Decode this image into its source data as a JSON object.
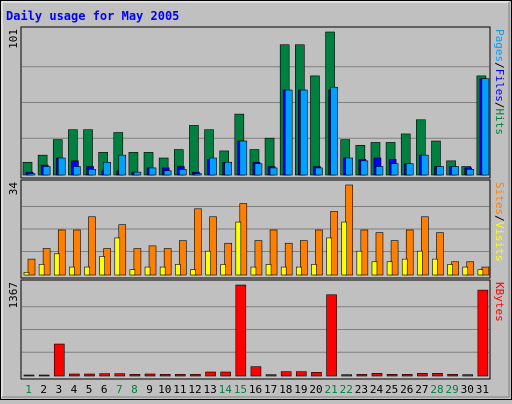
{
  "chart_data": {
    "type": "bar",
    "title": "Daily usage for May 2005",
    "categories": [
      "1",
      "2",
      "3",
      "4",
      "5",
      "6",
      "7",
      "8",
      "9",
      "10",
      "11",
      "12",
      "13",
      "14",
      "15",
      "16",
      "17",
      "18",
      "19",
      "20",
      "21",
      "22",
      "23",
      "24",
      "25",
      "26",
      "27",
      "28",
      "29",
      "30",
      "31"
    ],
    "weekend_days": [
      "1",
      "7",
      "8",
      "14",
      "15",
      "21",
      "22",
      "28",
      "29"
    ],
    "panels": [
      {
        "id": "hits",
        "max_label": "101",
        "ymax": 101,
        "side_label": [
          "Pages",
          "/",
          "Files",
          "/",
          "Hits"
        ],
        "side_label_colors": [
          "#00a0ff",
          "#000000",
          "#0000ff",
          "#000000",
          "#008040"
        ],
        "series": [
          {
            "name": "Hits",
            "color": "#008040",
            "values": [
              9,
              14,
              25,
              32,
              32,
              16,
              30,
              16,
              16,
              12,
              18,
              35,
              32,
              17,
              43,
              18,
              26,
              92,
              92,
              70,
              101,
              25,
              21,
              23,
              23,
              29,
              39,
              24,
              10,
              6,
              70
            ]
          },
          {
            "name": "Files",
            "color": "#0000ff",
            "values": [
              2,
              7,
              12,
              10,
              6,
              3,
              3,
              2,
              5,
              5,
              6,
              2,
              11,
              9,
              24,
              9,
              6,
              60,
              60,
              6,
              60,
              12,
              11,
              12,
              11,
              8,
              14,
              6,
              6,
              5,
              68
            ]
          },
          {
            "name": "Pages",
            "color": "#00a0ff",
            "values": [
              1,
              6,
              12,
              6,
              4,
              9,
              14,
              2,
              5,
              3,
              4,
              1,
              12,
              9,
              24,
              8,
              5,
              60,
              60,
              5,
              62,
              12,
              10,
              6,
              8,
              8,
              14,
              6,
              6,
              4,
              68
            ]
          }
        ]
      },
      {
        "id": "visits",
        "max_label": "34",
        "ymax": 34,
        "side_label": [
          "Sites",
          "/",
          "Visits"
        ],
        "side_label_colors": [
          "#ff8000",
          "#000000",
          "#ffff00"
        ],
        "series": [
          {
            "name": "Visits",
            "color": "#ff8000",
            "values": [
              6,
              10,
              17,
              17,
              22,
              10,
              19,
              10,
              11,
              10,
              13,
              25,
              22,
              12,
              27,
              13,
              17,
              12,
              13,
              17,
              24,
              34,
              17,
              16,
              13,
              17,
              22,
              16,
              5,
              5,
              3
            ]
          },
          {
            "name": "Sites",
            "color": "#ffff00",
            "values": [
              1,
              4,
              8,
              3,
              3,
              7,
              14,
              2,
              3,
              3,
              4,
              2,
              9,
              4,
              20,
              3,
              4,
              3,
              3,
              4,
              14,
              20,
              9,
              5,
              5,
              6,
              9,
              6,
              4,
              3,
              2
            ]
          }
        ]
      },
      {
        "id": "kbytes",
        "max_label": "1367",
        "ymax": 1367,
        "side_label": [
          "KBytes"
        ],
        "side_label_colors": [
          "#ff0000"
        ],
        "series": [
          {
            "name": "KBytes",
            "color": "#ff0000",
            "values": [
              10,
              15,
              480,
              30,
              30,
              35,
              35,
              25,
              30,
              25,
              25,
              25,
              60,
              60,
              1367,
              140,
              20,
              65,
              65,
              55,
              1220,
              20,
              25,
              40,
              25,
              25,
              40,
              40,
              25,
              20,
              1290
            ]
          }
        ]
      }
    ]
  }
}
